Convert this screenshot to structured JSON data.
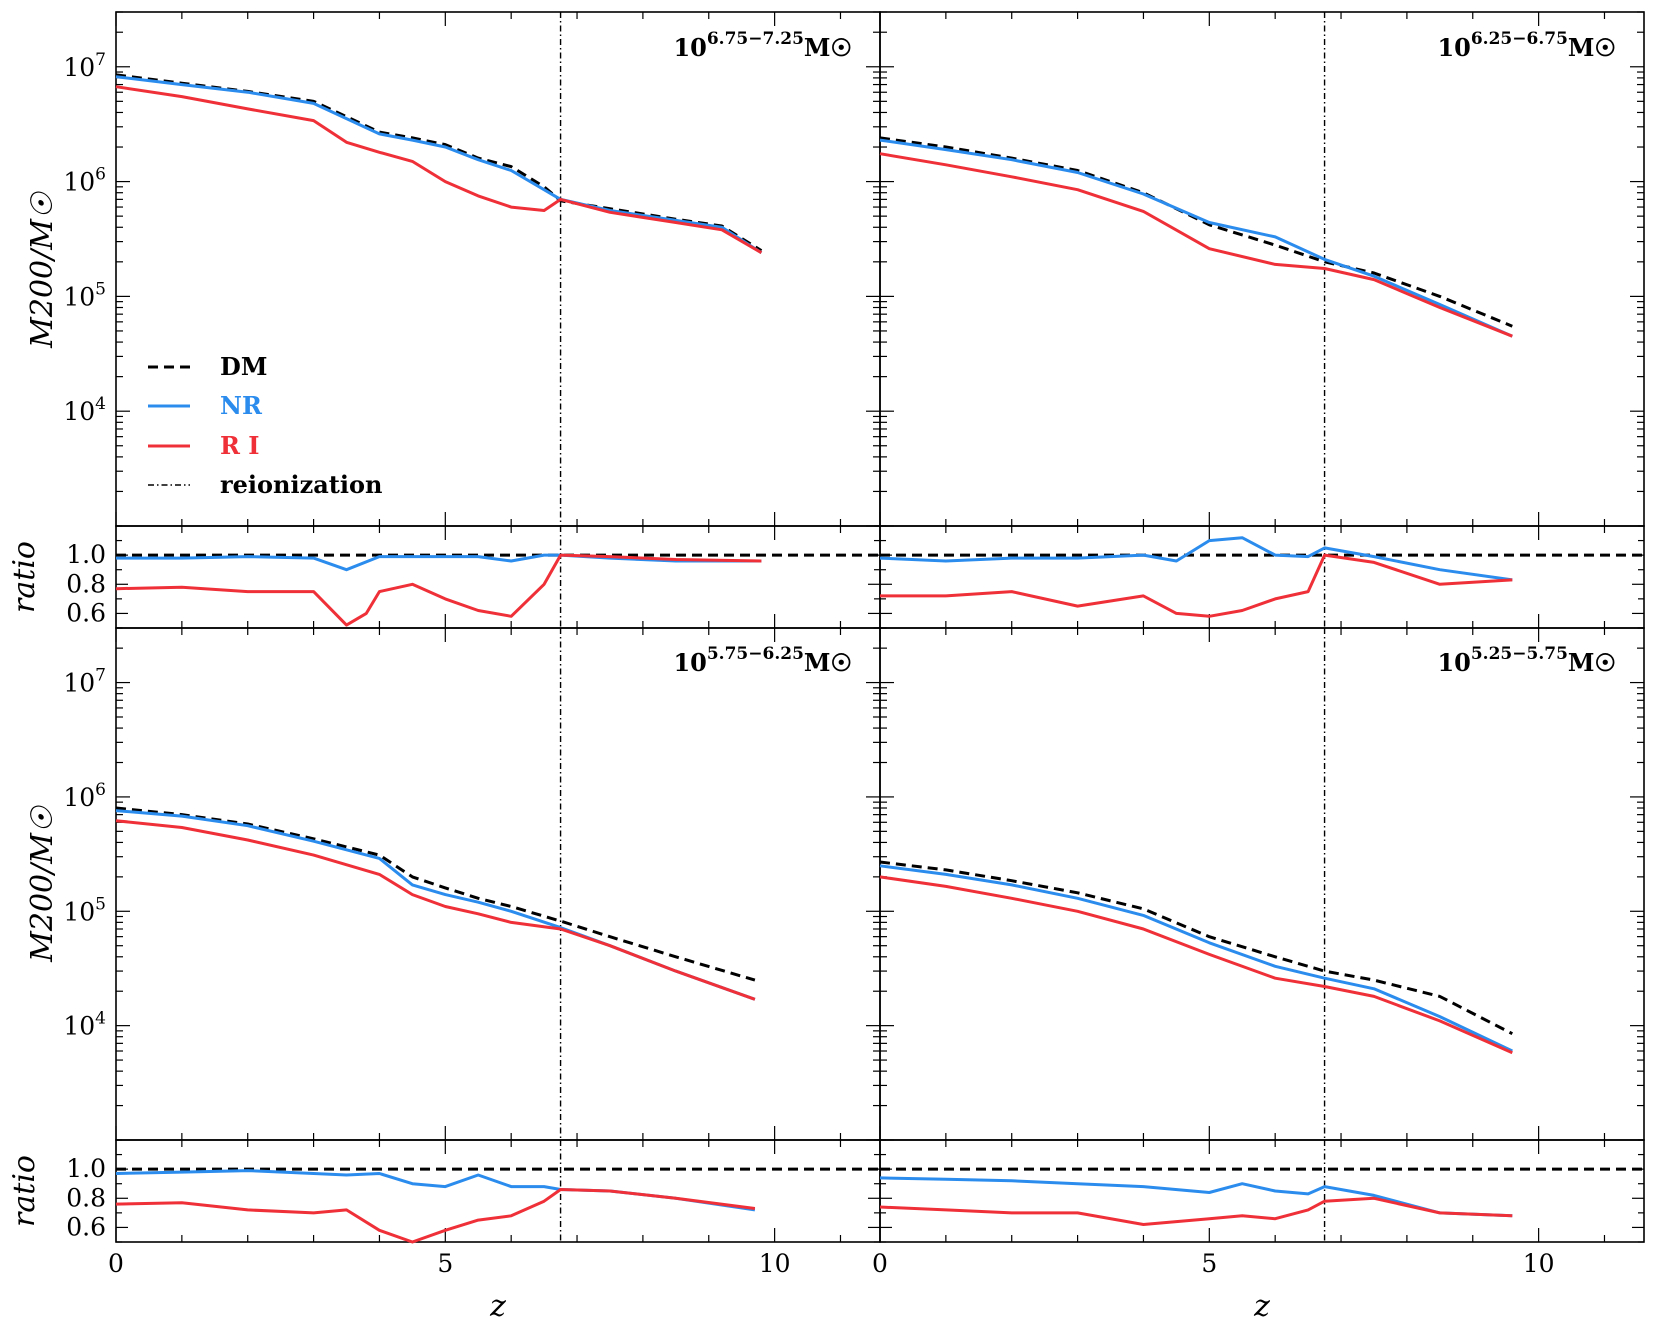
{
  "chart_data": {
    "type": "line",
    "xlabel": "z",
    "ylabel_main": "M200/M☉",
    "ylabel_ratio": "ratio",
    "xlim": [
      0,
      11.6
    ],
    "ylim_main": [
      1000,
      30000000
    ],
    "ylim_ratio": [
      0.5,
      1.2
    ],
    "x_ticks": [
      0,
      5,
      10
    ],
    "y_ticks_main": [
      10000,
      100000,
      1000000,
      10000000
    ],
    "y_ticks_ratio": [
      0.6,
      0.8,
      1.0
    ],
    "reionization_z": 6.75,
    "legend": [
      {
        "key": "DM",
        "label": "DM",
        "color": "#000000",
        "style": "dashed"
      },
      {
        "key": "NR",
        "label": "NR",
        "color": "#2b8cee",
        "style": "solid"
      },
      {
        "key": "RI",
        "label": "R I",
        "color": "#ef3038",
        "style": "solid"
      },
      {
        "key": "reion",
        "label": "reionization",
        "color": "#000000",
        "style": "dashdot"
      }
    ],
    "colors": {
      "DM": "#000000",
      "NR": "#2b8cee",
      "RI": "#ef3038"
    },
    "panels": [
      {
        "id": "top-left",
        "label_base": "10",
        "label_exp": "6.75−7.25",
        "label_unit": "M☉",
        "series": {
          "DM": {
            "z": [
              0,
              1,
              2,
              3,
              4,
              4.5,
              5,
              5.5,
              6,
              6.5,
              6.75,
              7.5,
              8.5,
              9.2,
              9.8
            ],
            "m": [
              8500000,
              7200000,
              6100000,
              5000000,
              2700000,
              2400000,
              2100000,
              1600000,
              1350000,
              900000,
              680000,
              580000,
              470000,
              410000,
              250000
            ]
          },
          "NR": {
            "z": [
              0,
              1,
              2,
              3,
              4,
              4.5,
              5,
              5.5,
              6,
              6.5,
              6.75,
              7.5,
              8.5,
              9.2,
              9.8
            ],
            "m": [
              8200000,
              7000000,
              6000000,
              4800000,
              2600000,
              2300000,
              2000000,
              1550000,
              1250000,
              850000,
              700000,
              560000,
              460000,
              400000,
              240000
            ]
          },
          "RI": {
            "z": [
              0,
              1,
              2,
              3,
              3.5,
              4,
              4.5,
              5,
              5.5,
              6,
              6.5,
              6.75,
              7.5,
              8.5,
              9.2,
              9.8
            ],
            "m": [
              6700000,
              5500000,
              4300000,
              3400000,
              2200000,
              1800000,
              1500000,
              1000000,
              750000,
              600000,
              560000,
              700000,
              540000,
              440000,
              380000,
              240000
            ]
          }
        },
        "ratio": {
          "NR": {
            "z": [
              0,
              1,
              2,
              3,
              3.5,
              4,
              4.5,
              5,
              5.5,
              6,
              6.5,
              6.75,
              7.5,
              8.5,
              9.8
            ],
            "r": [
              0.98,
              0.98,
              0.99,
              0.98,
              0.9,
              0.99,
              0.99,
              0.99,
              0.99,
              0.96,
              1.0,
              1.0,
              0.98,
              0.96,
              0.96
            ]
          },
          "RI": {
            "z": [
              0,
              1,
              2,
              3,
              3.5,
              3.8,
              4,
              4.5,
              5,
              5.5,
              6,
              6.5,
              6.75,
              7.5,
              8.5,
              9.8
            ],
            "r": [
              0.77,
              0.78,
              0.75,
              0.75,
              0.52,
              0.6,
              0.75,
              0.8,
              0.7,
              0.62,
              0.58,
              0.8,
              1.0,
              0.99,
              0.97,
              0.96
            ]
          }
        }
      },
      {
        "id": "top-right",
        "label_base": "10",
        "label_exp": "6.25−6.75",
        "label_unit": "M☉",
        "series": {
          "DM": {
            "z": [
              0,
              1,
              2,
              3,
              4,
              5,
              6,
              6.75,
              7.5,
              8.5,
              9.6
            ],
            "m": [
              2400000,
              2000000,
              1600000,
              1250000,
              800000,
              420000,
              280000,
              200000,
              160000,
              100000,
              55000
            ]
          },
          "NR": {
            "z": [
              0,
              1,
              2,
              3,
              4,
              5,
              6,
              6.75,
              7.5,
              8.5,
              9.6
            ],
            "m": [
              2300000,
              1900000,
              1550000,
              1200000,
              780000,
              440000,
              330000,
              210000,
              150000,
              85000,
              45000
            ]
          },
          "RI": {
            "z": [
              0,
              1,
              2,
              3,
              4,
              5,
              6,
              6.75,
              7.5,
              8.5,
              9.6
            ],
            "m": [
              1750000,
              1400000,
              1100000,
              850000,
              550000,
              260000,
              190000,
              175000,
              140000,
              80000,
              45000
            ]
          }
        },
        "ratio": {
          "NR": {
            "z": [
              0,
              1,
              2,
              3,
              4,
              4.5,
              5,
              5.5,
              6,
              6.5,
              6.75,
              7.5,
              8.5,
              9.6
            ],
            "r": [
              0.98,
              0.96,
              0.98,
              0.98,
              1.0,
              0.96,
              1.1,
              1.12,
              1.0,
              0.99,
              1.05,
              0.99,
              0.9,
              0.83
            ]
          },
          "RI": {
            "z": [
              0,
              1,
              2,
              3,
              4,
              4.5,
              5,
              5.5,
              6,
              6.5,
              6.75,
              7.5,
              8.5,
              9.6
            ],
            "r": [
              0.72,
              0.72,
              0.75,
              0.65,
              0.72,
              0.6,
              0.58,
              0.62,
              0.7,
              0.75,
              1.0,
              0.95,
              0.8,
              0.83
            ]
          }
        }
      },
      {
        "id": "bottom-left",
        "label_base": "10",
        "label_exp": "5.75−6.25",
        "label_unit": "M☉",
        "series": {
          "DM": {
            "z": [
              0,
              1,
              2,
              3,
              4,
              4.5,
              5,
              5.5,
              6,
              6.75,
              7.5,
              8.5,
              9.7
            ],
            "m": [
              800000,
              700000,
              580000,
              430000,
              310000,
              200000,
              160000,
              130000,
              110000,
              82000,
              60000,
              40000,
              25000
            ]
          },
          "NR": {
            "z": [
              0,
              1,
              2,
              3,
              4,
              4.5,
              5,
              5.5,
              6,
              6.75,
              7.5,
              8.5,
              9.7
            ],
            "m": [
              760000,
              680000,
              560000,
              410000,
              290000,
              170000,
              140000,
              120000,
              100000,
              72000,
              50000,
              30000,
              17000
            ]
          },
          "RI": {
            "z": [
              0,
              1,
              2,
              3,
              4,
              4.5,
              5,
              5.5,
              6,
              6.75,
              7.5,
              8.5,
              9.7
            ],
            "m": [
              620000,
              540000,
              420000,
              310000,
              210000,
              140000,
              110000,
              95000,
              80000,
              70000,
              50000,
              30000,
              17000
            ]
          }
        },
        "ratio": {
          "NR": {
            "z": [
              0,
              1,
              2,
              3,
              3.5,
              4,
              4.5,
              5,
              5.5,
              6,
              6.5,
              6.75,
              7.5,
              8.5,
              9.7
            ],
            "r": [
              0.97,
              0.98,
              0.99,
              0.97,
              0.96,
              0.97,
              0.9,
              0.88,
              0.96,
              0.88,
              0.88,
              0.86,
              0.85,
              0.8,
              0.72
            ]
          },
          "RI": {
            "z": [
              0,
              1,
              2,
              3,
              3.5,
              4,
              4.5,
              5,
              5.5,
              6,
              6.5,
              6.75,
              7.5,
              8.5,
              9.7
            ],
            "r": [
              0.76,
              0.77,
              0.72,
              0.7,
              0.72,
              0.58,
              0.5,
              0.58,
              0.65,
              0.68,
              0.78,
              0.86,
              0.85,
              0.8,
              0.73
            ]
          }
        }
      },
      {
        "id": "bottom-right",
        "label_base": "10",
        "label_exp": "5.25−5.75",
        "label_unit": "M☉",
        "series": {
          "DM": {
            "z": [
              0,
              1,
              2,
              3,
              4,
              5,
              6,
              6.75,
              7.5,
              8.5,
              9.6
            ],
            "m": [
              270000,
              230000,
              185000,
              145000,
              105000,
              60000,
              40000,
              30000,
              25000,
              18000,
              8500
            ]
          },
          "NR": {
            "z": [
              0,
              1,
              2,
              3,
              4,
              5,
              6,
              6.75,
              7.5,
              8.5,
              9.6
            ],
            "m": [
              250000,
              210000,
              170000,
              130000,
              92000,
              53000,
              33000,
              26000,
              21000,
              12000,
              6000
            ]
          },
          "RI": {
            "z": [
              0,
              1,
              2,
              3,
              4,
              5,
              6,
              6.75,
              7.5,
              8.5,
              9.6
            ],
            "m": [
              200000,
              165000,
              130000,
              100000,
              70000,
              42000,
              26000,
              22000,
              18000,
              11000,
              5800
            ]
          }
        },
        "ratio": {
          "NR": {
            "z": [
              0,
              1,
              2,
              3,
              4,
              5,
              5.5,
              6,
              6.5,
              6.75,
              7.5,
              8.5,
              9.6
            ],
            "r": [
              0.94,
              0.93,
              0.92,
              0.9,
              0.88,
              0.84,
              0.9,
              0.85,
              0.83,
              0.88,
              0.82,
              0.7,
              0.68
            ]
          },
          "RI": {
            "z": [
              0,
              1,
              2,
              3,
              4,
              5,
              5.5,
              6,
              6.5,
              6.75,
              7.5,
              8.5,
              9.6
            ],
            "r": [
              0.74,
              0.72,
              0.7,
              0.7,
              0.62,
              0.66,
              0.68,
              0.66,
              0.72,
              0.78,
              0.8,
              0.7,
              0.68
            ]
          }
        }
      }
    ]
  }
}
